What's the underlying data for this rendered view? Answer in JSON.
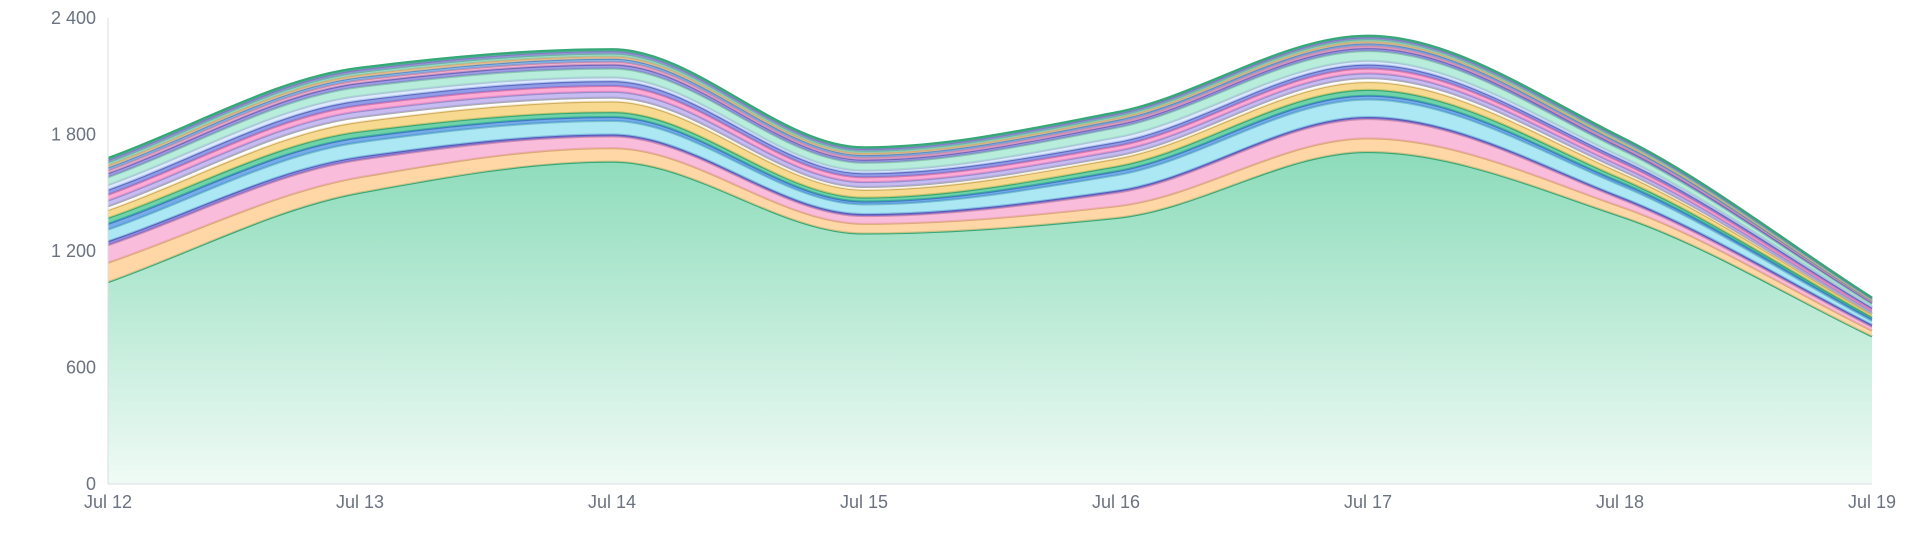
{
  "chart_data": {
    "type": "area",
    "stacked": true,
    "x": [
      "Jul 12",
      "Jul 13",
      "Jul 14",
      "Jul 15",
      "Jul 16",
      "Jul 17",
      "Jul 18",
      "Jul 19"
    ],
    "yticks": [
      "0",
      "600",
      "1 200",
      "1 800",
      "2 400"
    ],
    "ytick_values": [
      0,
      600,
      1200,
      1800,
      2400
    ],
    "ylim": [
      0,
      2400
    ],
    "grid": false,
    "legend": "none",
    "series": [
      {
        "color": "#3fc48c",
        "values": [
          1040,
          1500,
          1660,
          1290,
          1370,
          1710,
          1380,
          760
        ]
      },
      {
        "color": "#ffc98a",
        "values": [
          100,
          80,
          70,
          50,
          60,
          70,
          50,
          30
        ]
      },
      {
        "color": "#f7a7cf",
        "values": [
          90,
          90,
          60,
          40,
          70,
          100,
          40,
          20
        ]
      },
      {
        "color": "#6a67d6",
        "values": [
          20,
          15,
          10,
          10,
          10,
          10,
          10,
          10
        ]
      },
      {
        "color": "#8fe0f0",
        "values": [
          60,
          75,
          70,
          50,
          80,
          90,
          60,
          20
        ]
      },
      {
        "color": "#4a90e2",
        "values": [
          30,
          25,
          20,
          15,
          20,
          20,
          15,
          10
        ]
      },
      {
        "color": "#3fc48c",
        "values": [
          30,
          30,
          25,
          20,
          25,
          30,
          20,
          10
        ]
      },
      {
        "color": "#f5cc6b",
        "values": [
          40,
          50,
          55,
          40,
          40,
          40,
          30,
          15
        ]
      },
      {
        "color": "#ffffff",
        "values": [
          20,
          25,
          20,
          15,
          15,
          20,
          15,
          5
        ]
      },
      {
        "color": "#b3a6ee",
        "values": [
          30,
          30,
          30,
          25,
          25,
          25,
          20,
          10
        ]
      },
      {
        "color": "#ff8fc8",
        "values": [
          30,
          30,
          30,
          25,
          25,
          25,
          20,
          10
        ]
      },
      {
        "color": "#6c7be0",
        "values": [
          25,
          25,
          25,
          20,
          20,
          20,
          15,
          8
        ]
      },
      {
        "color": "#cfe3ff",
        "values": [
          25,
          25,
          20,
          15,
          25,
          20,
          15,
          8
        ]
      },
      {
        "color": "#a0e6cf",
        "values": [
          40,
          45,
          45,
          40,
          50,
          50,
          35,
          12
        ]
      },
      {
        "color": "#8079d9",
        "values": [
          20,
          20,
          20,
          15,
          15,
          15,
          12,
          6
        ]
      },
      {
        "color": "#f3a6c7",
        "values": [
          15,
          15,
          15,
          12,
          12,
          12,
          10,
          5
        ]
      },
      {
        "color": "#6aa6e6",
        "values": [
          15,
          15,
          15,
          12,
          12,
          12,
          10,
          5
        ]
      },
      {
        "color": "#ffc98a",
        "values": [
          12,
          12,
          12,
          10,
          10,
          10,
          8,
          4
        ]
      },
      {
        "color": "#7fd5c0",
        "values": [
          15,
          15,
          15,
          12,
          12,
          12,
          10,
          5
        ]
      },
      {
        "color": "#9b8ce3",
        "values": [
          12,
          12,
          12,
          10,
          10,
          10,
          8,
          4
        ]
      },
      {
        "color": "#3fc48c",
        "values": [
          10,
          10,
          10,
          8,
          8,
          8,
          7,
          3
        ]
      }
    ]
  }
}
